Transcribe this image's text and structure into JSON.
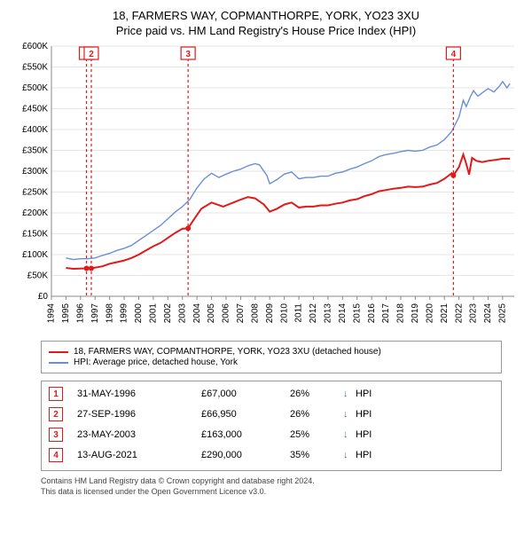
{
  "title": {
    "main": "18, FARMERS WAY, COPMANTHORPE, YORK, YO23 3XU",
    "sub": "Price paid vs. HM Land Registry's House Price Index (HPI)"
  },
  "chart": {
    "type": "line",
    "background_color": "#ffffff",
    "grid_color": "#e5e5e5",
    "axis_color": "#888888",
    "font_family": "Arial",
    "y_axis": {
      "min": 0,
      "max": 600000,
      "tick_step": 50000,
      "tick_labels": [
        "£0",
        "£50K",
        "£100K",
        "£150K",
        "£200K",
        "£250K",
        "£300K",
        "£350K",
        "£400K",
        "£450K",
        "£500K",
        "£550K",
        "£600K"
      ],
      "label_fontsize": 10
    },
    "x_axis": {
      "min": 1994,
      "max": 2025.8,
      "tick_step": 1,
      "tick_labels": [
        "1994",
        "1995",
        "1996",
        "1997",
        "1998",
        "1999",
        "2000",
        "2001",
        "2002",
        "2003",
        "2004",
        "2005",
        "2006",
        "2007",
        "2008",
        "2009",
        "2010",
        "2011",
        "2012",
        "2013",
        "2014",
        "2015",
        "2016",
        "2017",
        "2018",
        "2019",
        "2020",
        "2021",
        "2022",
        "2023",
        "2024",
        "2025"
      ],
      "label_fontsize": 10,
      "label_rotation": -90
    },
    "series": [
      {
        "name": "property",
        "label": "18, FARMERS WAY, COPMANTHORPE, YORK, YO23 3XU (detached house)",
        "color": "#e11919",
        "line_width": 2,
        "data": [
          [
            1995.0,
            68000
          ],
          [
            1995.5,
            66000
          ],
          [
            1996.41,
            67000
          ],
          [
            1996.74,
            66950
          ],
          [
            1997.5,
            72000
          ],
          [
            1998.0,
            78000
          ],
          [
            1998.5,
            82000
          ],
          [
            1999.0,
            86000
          ],
          [
            1999.5,
            92000
          ],
          [
            2000.0,
            100000
          ],
          [
            2000.5,
            110000
          ],
          [
            2001.0,
            120000
          ],
          [
            2001.5,
            128000
          ],
          [
            2002.0,
            140000
          ],
          [
            2002.5,
            152000
          ],
          [
            2003.0,
            162000
          ],
          [
            2003.39,
            163000
          ],
          [
            2003.8,
            185000
          ],
          [
            2004.3,
            210000
          ],
          [
            2005.0,
            225000
          ],
          [
            2005.8,
            215000
          ],
          [
            2006.5,
            225000
          ],
          [
            2007.0,
            232000
          ],
          [
            2007.5,
            238000
          ],
          [
            2008.0,
            235000
          ],
          [
            2008.6,
            220000
          ],
          [
            2009.0,
            203000
          ],
          [
            2009.5,
            210000
          ],
          [
            2010.0,
            220000
          ],
          [
            2010.5,
            225000
          ],
          [
            2011.0,
            213000
          ],
          [
            2011.5,
            215000
          ],
          [
            2012.0,
            215000
          ],
          [
            2012.5,
            218000
          ],
          [
            2013.0,
            218000
          ],
          [
            2013.5,
            222000
          ],
          [
            2014.0,
            225000
          ],
          [
            2014.5,
            230000
          ],
          [
            2015.0,
            233000
          ],
          [
            2015.5,
            240000
          ],
          [
            2016.0,
            245000
          ],
          [
            2016.5,
            252000
          ],
          [
            2017.0,
            255000
          ],
          [
            2017.5,
            258000
          ],
          [
            2018.0,
            260000
          ],
          [
            2018.5,
            263000
          ],
          [
            2019.0,
            262000
          ],
          [
            2019.5,
            263000
          ],
          [
            2020.0,
            268000
          ],
          [
            2020.5,
            272000
          ],
          [
            2021.0,
            282000
          ],
          [
            2021.5,
            295000
          ],
          [
            2021.62,
            290000
          ],
          [
            2022.0,
            310000
          ],
          [
            2022.3,
            340000
          ],
          [
            2022.5,
            318000
          ],
          [
            2022.7,
            292000
          ],
          [
            2022.9,
            332000
          ],
          [
            2023.2,
            325000
          ],
          [
            2023.6,
            322000
          ],
          [
            2024.0,
            325000
          ],
          [
            2024.5,
            327000
          ],
          [
            2025.0,
            330000
          ],
          [
            2025.5,
            330000
          ]
        ]
      },
      {
        "name": "hpi",
        "label": "HPI: Average price, detached house, York",
        "color": "#6a8fd6",
        "line_width": 1.4,
        "data": [
          [
            1995.0,
            92000
          ],
          [
            1995.5,
            88000
          ],
          [
            1996.0,
            90000
          ],
          [
            1996.5,
            90000
          ],
          [
            1997.0,
            92000
          ],
          [
            1997.5,
            98000
          ],
          [
            1998.0,
            103000
          ],
          [
            1998.5,
            110000
          ],
          [
            1999.0,
            115000
          ],
          [
            1999.5,
            122000
          ],
          [
            2000.0,
            134000
          ],
          [
            2000.5,
            146000
          ],
          [
            2001.0,
            158000
          ],
          [
            2001.5,
            170000
          ],
          [
            2002.0,
            186000
          ],
          [
            2002.5,
            202000
          ],
          [
            2003.0,
            215000
          ],
          [
            2003.5,
            232000
          ],
          [
            2004.0,
            260000
          ],
          [
            2004.5,
            282000
          ],
          [
            2005.0,
            295000
          ],
          [
            2005.5,
            285000
          ],
          [
            2006.0,
            293000
          ],
          [
            2006.5,
            300000
          ],
          [
            2007.0,
            305000
          ],
          [
            2007.5,
            313000
          ],
          [
            2008.0,
            318000
          ],
          [
            2008.3,
            315000
          ],
          [
            2008.8,
            290000
          ],
          [
            2009.0,
            270000
          ],
          [
            2009.5,
            280000
          ],
          [
            2010.0,
            293000
          ],
          [
            2010.5,
            298000
          ],
          [
            2011.0,
            282000
          ],
          [
            2011.5,
            285000
          ],
          [
            2012.0,
            285000
          ],
          [
            2012.5,
            288000
          ],
          [
            2013.0,
            288000
          ],
          [
            2013.5,
            295000
          ],
          [
            2014.0,
            298000
          ],
          [
            2014.5,
            305000
          ],
          [
            2015.0,
            310000
          ],
          [
            2015.5,
            318000
          ],
          [
            2016.0,
            325000
          ],
          [
            2016.5,
            335000
          ],
          [
            2017.0,
            340000
          ],
          [
            2017.5,
            343000
          ],
          [
            2018.0,
            347000
          ],
          [
            2018.5,
            350000
          ],
          [
            2019.0,
            348000
          ],
          [
            2019.5,
            350000
          ],
          [
            2020.0,
            358000
          ],
          [
            2020.5,
            363000
          ],
          [
            2021.0,
            376000
          ],
          [
            2021.5,
            395000
          ],
          [
            2022.0,
            430000
          ],
          [
            2022.3,
            470000
          ],
          [
            2022.5,
            455000
          ],
          [
            2022.8,
            480000
          ],
          [
            2023.0,
            493000
          ],
          [
            2023.3,
            480000
          ],
          [
            2023.6,
            488000
          ],
          [
            2024.0,
            498000
          ],
          [
            2024.4,
            490000
          ],
          [
            2024.8,
            505000
          ],
          [
            2025.0,
            515000
          ],
          [
            2025.3,
            500000
          ],
          [
            2025.5,
            510000
          ]
        ]
      }
    ],
    "markers": [
      {
        "n": "1",
        "x": 1996.41,
        "y": 67000
      },
      {
        "n": "2",
        "x": 1996.74,
        "y": 66950
      },
      {
        "n": "3",
        "x": 2003.39,
        "y": 163000
      },
      {
        "n": "4",
        "x": 2021.62,
        "y": 290000
      }
    ],
    "marker_style": {
      "dash_color": "#e11919",
      "dash_pattern": "3 3",
      "box_fill": "#ffffff",
      "box_stroke": "#e11919",
      "label_color": "#e11919",
      "label_fontsize": 10,
      "dot_radius": 3
    }
  },
  "legend": {
    "items": [
      {
        "color": "#e11919",
        "label": "18, FARMERS WAY, COPMANTHORPE, YORK, YO23 3XU (detached house)"
      },
      {
        "color": "#6a8fd6",
        "label": "HPI: Average price, detached house, York"
      }
    ],
    "fontsize": 10,
    "border_color": "#999999"
  },
  "events": [
    {
      "n": "1",
      "date": "31-MAY-1996",
      "price": "£67,000",
      "pct": "26%",
      "arrow": "↓",
      "suffix": "HPI"
    },
    {
      "n": "2",
      "date": "27-SEP-1996",
      "price": "£66,950",
      "pct": "26%",
      "arrow": "↓",
      "suffix": "HPI"
    },
    {
      "n": "3",
      "date": "23-MAY-2003",
      "price": "£163,000",
      "pct": "25%",
      "arrow": "↓",
      "suffix": "HPI"
    },
    {
      "n": "4",
      "date": "13-AUG-2021",
      "price": "£290,000",
      "pct": "35%",
      "arrow": "↓",
      "suffix": "HPI"
    }
  ],
  "footnote": {
    "line1": "Contains HM Land Registry data © Crown copyright and database right 2024.",
    "line2": "This data is licensed under the Open Government Licence v3.0."
  }
}
